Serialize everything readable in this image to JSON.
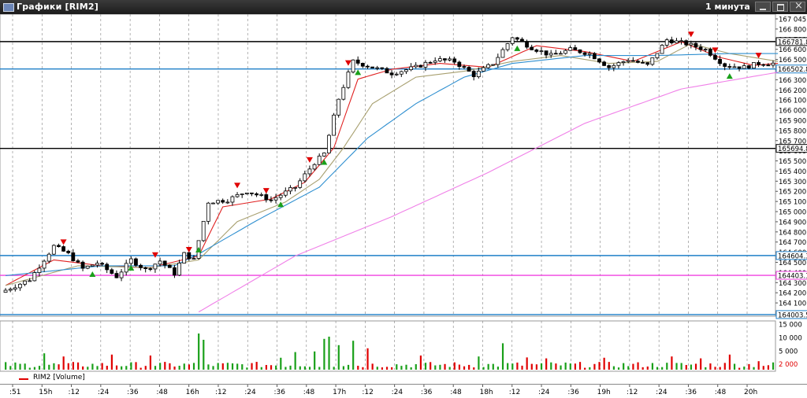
{
  "window": {
    "title": "Графики [RIM2]",
    "interval": "1 минута"
  },
  "legend": {
    "volume_label": "RIM2 [Volume]",
    "volume_color": "#e00000"
  },
  "colors": {
    "up": "#1aa01a",
    "down": "#e00000",
    "ma_fast": "#e02020",
    "ma_mid": "#a8a070",
    "ma_slow": "#2e8fd0",
    "ma_long": "#f080e8",
    "level_black": "#000000",
    "level_blue": "#1f7fc8",
    "level_magenta": "#f040e0"
  },
  "chart_data": [
    {
      "type": "candlestick",
      "symbol": "RIM2",
      "interval": "1 минута",
      "ylim": [
        164003,
        167045
      ],
      "y_tick_labels": [
        "167 045",
        "166 800",
        "166 700",
        "166 600",
        "166 500",
        "166 400",
        "166 300",
        "166 200",
        "166 100",
        "166 000",
        "165 900",
        "165 800",
        "165 700",
        "165 600",
        "165 500",
        "165 400",
        "165 300",
        "165 200",
        "165 100",
        "165 000",
        "164 900",
        "164 800",
        "164 700",
        "164 600",
        "164 500",
        "164 400",
        "164 300",
        "164 200",
        "164 100",
        "164 003"
      ],
      "x_tick_labels": [
        ":51",
        "15h",
        ":12",
        ":24",
        ":36",
        ":48",
        "16h",
        ":12",
        ":24",
        ":36",
        ":48",
        "17h",
        ":12",
        ":24",
        ":36",
        ":48",
        "18h",
        ":12",
        ":24",
        ":36",
        "19h",
        ":12",
        ":24",
        ":36",
        ":48",
        "20h"
      ],
      "price_path": [
        [
          0,
          164230
        ],
        [
          6,
          164360
        ],
        [
          11,
          164700
        ],
        [
          14,
          164620
        ],
        [
          17,
          164470
        ],
        [
          20,
          164530
        ],
        [
          24,
          164390
        ],
        [
          27,
          164560
        ],
        [
          30,
          164460
        ],
        [
          33,
          164550
        ],
        [
          36,
          164420
        ],
        [
          38,
          164620
        ],
        [
          40,
          164560
        ],
        [
          43,
          165150
        ],
        [
          47,
          165170
        ],
        [
          51,
          165260
        ],
        [
          56,
          165170
        ],
        [
          61,
          165300
        ],
        [
          65,
          165550
        ],
        [
          67,
          165640
        ],
        [
          70,
          166200
        ],
        [
          73,
          166580
        ],
        [
          77,
          166520
        ],
        [
          81,
          166460
        ],
        [
          86,
          166520
        ],
        [
          90,
          166600
        ],
        [
          94,
          166580
        ],
        [
          98,
          166440
        ],
        [
          102,
          166560
        ],
        [
          106,
          166830
        ],
        [
          110,
          166720
        ],
        [
          114,
          166640
        ],
        [
          118,
          166700
        ],
        [
          122,
          166660
        ],
        [
          126,
          166520
        ],
        [
          130,
          166600
        ],
        [
          134,
          166540
        ],
        [
          138,
          166800
        ],
        [
          142,
          166760
        ],
        [
          146,
          166700
        ],
        [
          150,
          166540
        ],
        [
          154,
          166520
        ],
        [
          157,
          166560
        ],
        [
          160,
          166560
        ]
      ],
      "moving_averages": [
        {
          "color_key": "ma_fast",
          "path": [
            [
              0,
              164300
            ],
            [
              10,
              164560
            ],
            [
              20,
              164500
            ],
            [
              30,
              164480
            ],
            [
              40,
              164600
            ],
            [
              45,
              165100
            ],
            [
              55,
              165180
            ],
            [
              62,
              165350
            ],
            [
              68,
              165700
            ],
            [
              73,
              166400
            ],
            [
              80,
              166500
            ],
            [
              90,
              166560
            ],
            [
              100,
              166520
            ],
            [
              110,
              166740
            ],
            [
              120,
              166680
            ],
            [
              130,
              166580
            ],
            [
              140,
              166780
            ],
            [
              148,
              166620
            ],
            [
              155,
              166540
            ],
            [
              160,
              166560
            ]
          ]
        },
        {
          "color_key": "ma_mid",
          "path": [
            [
              0,
              164300
            ],
            [
              15,
              164500
            ],
            [
              30,
              164480
            ],
            [
              40,
              164560
            ],
            [
              48,
              164950
            ],
            [
              58,
              165150
            ],
            [
              65,
              165380
            ],
            [
              70,
              165700
            ],
            [
              76,
              166150
            ],
            [
              85,
              166420
            ],
            [
              95,
              166480
            ],
            [
              105,
              166580
            ],
            [
              115,
              166640
            ],
            [
              125,
              166560
            ],
            [
              135,
              166580
            ],
            [
              142,
              166760
            ],
            [
              150,
              166660
            ],
            [
              160,
              166580
            ]
          ]
        },
        {
          "color_key": "ma_slow",
          "path": [
            [
              0,
              164400
            ],
            [
              20,
              164500
            ],
            [
              35,
              164500
            ],
            [
              40,
              164620
            ],
            [
              52,
              164960
            ],
            [
              65,
              165300
            ],
            [
              75,
              165800
            ],
            [
              85,
              166150
            ],
            [
              95,
              166420
            ],
            [
              105,
              166560
            ],
            [
              120,
              166640
            ],
            [
              135,
              166640
            ],
            [
              150,
              166660
            ],
            [
              160,
              166660
            ]
          ]
        },
        {
          "color_key": "ma_long",
          "path": [
            [
              40,
              164030
            ],
            [
              60,
              164600
            ],
            [
              80,
              165000
            ],
            [
              100,
              165450
            ],
            [
              120,
              165950
            ],
            [
              140,
              166300
            ],
            [
              160,
              166470
            ]
          ]
        }
      ],
      "horizontal_levels": [
        {
          "label": "166781.8",
          "value": 166781.8,
          "color_key": "level_black"
        },
        {
          "label": "166502.8",
          "value": 166502.8,
          "color_key": "level_blue"
        },
        {
          "label": "165694.8",
          "value": 165694.8,
          "color_key": "level_black"
        },
        {
          "label": "164604.3",
          "value": 164604.3,
          "color_key": "level_blue"
        },
        {
          "label": "164403.1",
          "value": 164403.1,
          "color_key": "level_magenta"
        },
        {
          "label": "164003.5",
          "value": 164003.5,
          "color_key": "level_blue"
        }
      ]
    },
    {
      "type": "bar",
      "name": "RIM2 [Volume]",
      "ylim": [
        0,
        15000
      ],
      "y_tick_labels": [
        "15 000",
        "10 000",
        "5 000"
      ],
      "last_value_label": "2 000",
      "spikes": [
        [
          8,
          5200
        ],
        [
          12,
          4200
        ],
        [
          22,
          4800
        ],
        [
          30,
          4500
        ],
        [
          40,
          11500
        ],
        [
          41,
          9500
        ],
        [
          57,
          3800
        ],
        [
          60,
          5600
        ],
        [
          64,
          5800
        ],
        [
          66,
          9800
        ],
        [
          67,
          10500
        ],
        [
          69,
          7800
        ],
        [
          72,
          9200
        ],
        [
          75,
          6800
        ],
        [
          86,
          4500
        ],
        [
          98,
          4200
        ],
        [
          103,
          8400
        ],
        [
          108,
          3900
        ],
        [
          112,
          3600
        ],
        [
          124,
          3800
        ],
        [
          138,
          4200
        ],
        [
          144,
          3600
        ],
        [
          150,
          4800
        ],
        [
          156,
          2700
        ]
      ]
    }
  ]
}
